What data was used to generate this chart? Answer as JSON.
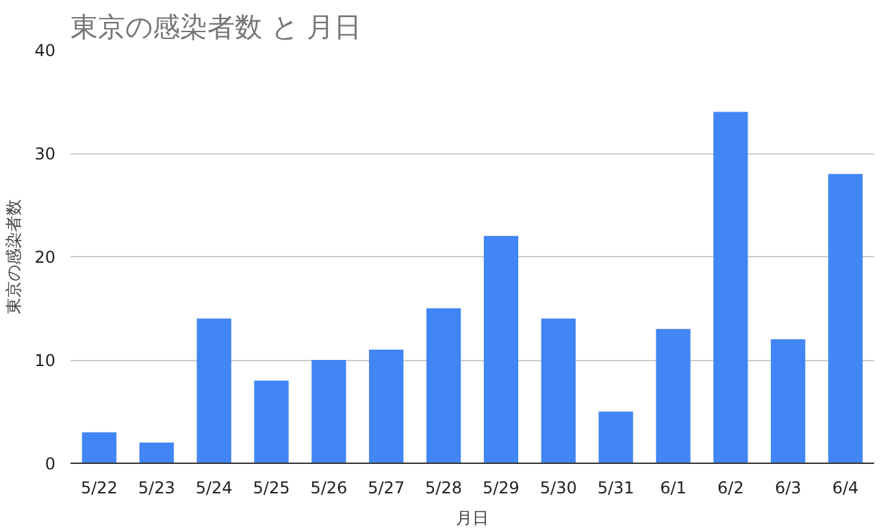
{
  "chart_data": {
    "type": "bar",
    "title": "東京の感染者数 と 月日",
    "xlabel": "月日",
    "ylabel": "東京の感染者数",
    "categories": [
      "5/22",
      "5/23",
      "5/24",
      "5/25",
      "5/26",
      "5/27",
      "5/28",
      "5/29",
      "5/30",
      "5/31",
      "6/1",
      "6/2",
      "6/3",
      "6/4"
    ],
    "series": [
      {
        "color": "#4285f4",
        "values": [
          3,
          2,
          14,
          8,
          10,
          11,
          15,
          22,
          14,
          5,
          13,
          34,
          12,
          28
        ]
      }
    ],
    "ylim": [
      0,
      40
    ],
    "yticks": [
      0,
      10,
      20,
      30,
      40
    ],
    "grid": "y"
  }
}
